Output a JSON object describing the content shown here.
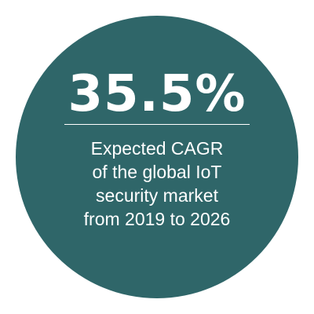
{
  "colors": {
    "circle": "#2f6669",
    "text": "#ffffff",
    "background": "#ffffff"
  },
  "stat": {
    "value": "35.5%",
    "caption_lines": [
      "Expected CAGR",
      "of the global IoT",
      "security market",
      "from 2019 to 2026"
    ]
  }
}
